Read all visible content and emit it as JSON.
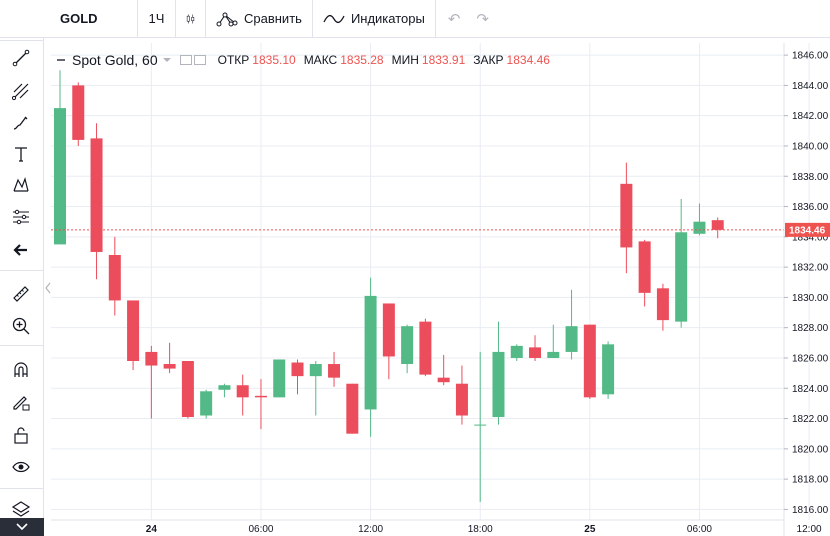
{
  "toolbar": {
    "symbol": "GOLD",
    "interval": "1Ч",
    "compare_label": "Сравнить",
    "indicators_label": "Индикаторы"
  },
  "legend": {
    "title": "Spot Gold, 60",
    "open_label": "ОТКР",
    "open_value": "1835.10",
    "high_label": "МАКС",
    "high_value": "1835.28",
    "low_label": "МИН",
    "low_value": "1833.91",
    "close_label": "ЗАКР",
    "close_value": "1834.46"
  },
  "colors": {
    "up": "#53b987",
    "down": "#eb4d5c",
    "grid": "#e8edf3",
    "price_line": "#ef5350",
    "axis_text": "#131722"
  },
  "chart_data": {
    "type": "candlestick",
    "symbol": "Spot Gold",
    "interval": "60",
    "last_price": 1834.46,
    "ylim": [
      1815.3,
      1846.8
    ],
    "y_ticks": [
      1816,
      1818,
      1820,
      1822,
      1824,
      1826,
      1828,
      1830,
      1832,
      1834,
      1836,
      1838,
      1840,
      1842,
      1844,
      1846
    ],
    "x_ticks": [
      "24",
      "06:00",
      "12:00",
      "18:00",
      "25",
      "06:00",
      "12:00"
    ],
    "grid": true,
    "candles": [
      {
        "o": 1833.5,
        "h": 1845.0,
        "l": 1833.5,
        "c": 1842.5
      },
      {
        "o": 1844.0,
        "h": 1844.2,
        "l": 1840.0,
        "c": 1840.4
      },
      {
        "o": 1840.5,
        "h": 1841.5,
        "l": 1831.2,
        "c": 1833.0
      },
      {
        "o": 1832.8,
        "h": 1834.0,
        "l": 1828.8,
        "c": 1829.8
      },
      {
        "o": 1829.8,
        "h": 1829.8,
        "l": 1825.2,
        "c": 1825.8
      },
      {
        "o": 1826.4,
        "h": 1826.8,
        "l": 1822.0,
        "c": 1825.5
      },
      {
        "o": 1825.6,
        "h": 1827.0,
        "l": 1825.0,
        "c": 1825.3
      },
      {
        "o": 1825.8,
        "h": 1825.8,
        "l": 1822.0,
        "c": 1822.1
      },
      {
        "o": 1822.2,
        "h": 1823.9,
        "l": 1822.0,
        "c": 1823.8
      },
      {
        "o": 1823.9,
        "h": 1824.3,
        "l": 1823.4,
        "c": 1824.2
      },
      {
        "o": 1824.2,
        "h": 1824.9,
        "l": 1822.2,
        "c": 1823.4
      },
      {
        "o": 1823.5,
        "h": 1824.6,
        "l": 1821.3,
        "c": 1823.4
      },
      {
        "o": 1823.4,
        "h": 1825.9,
        "l": 1823.4,
        "c": 1825.9
      },
      {
        "o": 1825.7,
        "h": 1825.9,
        "l": 1823.6,
        "c": 1824.8
      },
      {
        "o": 1824.8,
        "h": 1825.8,
        "l": 1822.2,
        "c": 1825.6
      },
      {
        "o": 1825.6,
        "h": 1826.4,
        "l": 1824.1,
        "c": 1824.7
      },
      {
        "o": 1824.3,
        "h": 1824.3,
        "l": 1821.0,
        "c": 1821.0
      },
      {
        "o": 1822.6,
        "h": 1831.3,
        "l": 1820.8,
        "c": 1830.1
      },
      {
        "o": 1829.6,
        "h": 1829.6,
        "l": 1824.6,
        "c": 1826.1
      },
      {
        "o": 1825.6,
        "h": 1828.2,
        "l": 1825.0,
        "c": 1828.1
      },
      {
        "o": 1828.4,
        "h": 1828.6,
        "l": 1824.8,
        "c": 1824.9
      },
      {
        "o": 1824.7,
        "h": 1826.2,
        "l": 1824.2,
        "c": 1824.4
      },
      {
        "o": 1824.3,
        "h": 1825.5,
        "l": 1821.6,
        "c": 1822.2
      },
      {
        "o": 1821.6,
        "h": 1826.4,
        "l": 1816.5,
        "c": 1821.6
      },
      {
        "o": 1822.1,
        "h": 1828.4,
        "l": 1821.6,
        "c": 1826.4
      },
      {
        "o": 1826.0,
        "h": 1826.9,
        "l": 1825.8,
        "c": 1826.8
      },
      {
        "o": 1826.7,
        "h": 1827.5,
        "l": 1825.8,
        "c": 1826.0
      },
      {
        "o": 1826.0,
        "h": 1828.2,
        "l": 1826.0,
        "c": 1826.4
      },
      {
        "o": 1826.4,
        "h": 1830.5,
        "l": 1825.9,
        "c": 1828.1
      },
      {
        "o": 1828.2,
        "h": 1828.2,
        "l": 1823.3,
        "c": 1823.4
      },
      {
        "o": 1823.6,
        "h": 1827.1,
        "l": 1823.3,
        "c": 1826.9
      },
      {
        "o": 1837.5,
        "h": 1838.9,
        "l": 1831.6,
        "c": 1833.3
      },
      {
        "o": 1833.7,
        "h": 1833.8,
        "l": 1829.4,
        "c": 1830.3
      },
      {
        "o": 1830.6,
        "h": 1830.9,
        "l": 1827.8,
        "c": 1828.5
      },
      {
        "o": 1828.4,
        "h": 1836.5,
        "l": 1828.0,
        "c": 1834.3
      },
      {
        "o": 1834.2,
        "h": 1836.2,
        "l": 1834.1,
        "c": 1835.0
      },
      {
        "o": 1835.1,
        "h": 1835.28,
        "l": 1833.91,
        "c": 1834.46
      }
    ]
  }
}
